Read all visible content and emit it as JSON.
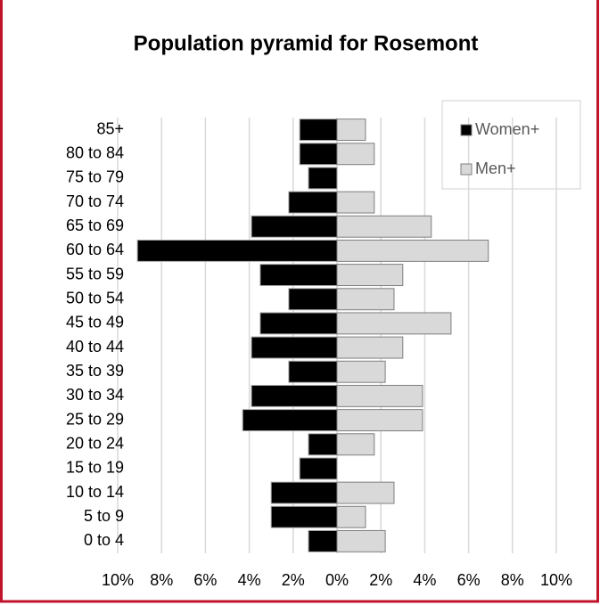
{
  "chart_data": {
    "type": "pyramid",
    "title": "Population pyramid for Rosemont",
    "categories": [
      "85+",
      "80 to 84",
      "75 to 79",
      "70 to 74",
      "65 to 69",
      "60 to 64",
      "55 to 59",
      "50 to 54",
      "45 to 49",
      "40 to 44",
      "35 to 39",
      "30 to 34",
      "25 to 29",
      "20 to 24",
      "15 to 19",
      "10 to 14",
      "5 to 9",
      "0 to 4"
    ],
    "series": [
      {
        "name": "Women+",
        "color": "#000000",
        "side": "left",
        "values": [
          1.7,
          1.7,
          1.3,
          2.2,
          3.9,
          9.1,
          3.5,
          2.2,
          3.5,
          3.9,
          2.2,
          3.9,
          4.3,
          1.3,
          1.7,
          3.0,
          3.0,
          1.3
        ]
      },
      {
        "name": "Men+",
        "color": "#d9d9d9",
        "side": "right",
        "values": [
          1.3,
          1.7,
          0,
          1.7,
          4.3,
          6.9,
          3.0,
          2.6,
          5.2,
          3.0,
          2.2,
          3.9,
          3.9,
          1.7,
          0,
          2.6,
          1.3,
          2.2
        ]
      }
    ],
    "xlim": [
      -10,
      10
    ],
    "xticks": [
      {
        "value": -10,
        "label": "10%"
      },
      {
        "value": -8,
        "label": "8%"
      },
      {
        "value": -6,
        "label": "6%"
      },
      {
        "value": -4,
        "label": "4%"
      },
      {
        "value": -2,
        "label": "2%"
      },
      {
        "value": 0,
        "label": "0%"
      },
      {
        "value": 2,
        "label": "2%"
      },
      {
        "value": 4,
        "label": "4%"
      },
      {
        "value": 6,
        "label": "6%"
      },
      {
        "value": 8,
        "label": "8%"
      },
      {
        "value": 10,
        "label": "10%"
      }
    ],
    "grid": true,
    "legend": "top-right"
  }
}
